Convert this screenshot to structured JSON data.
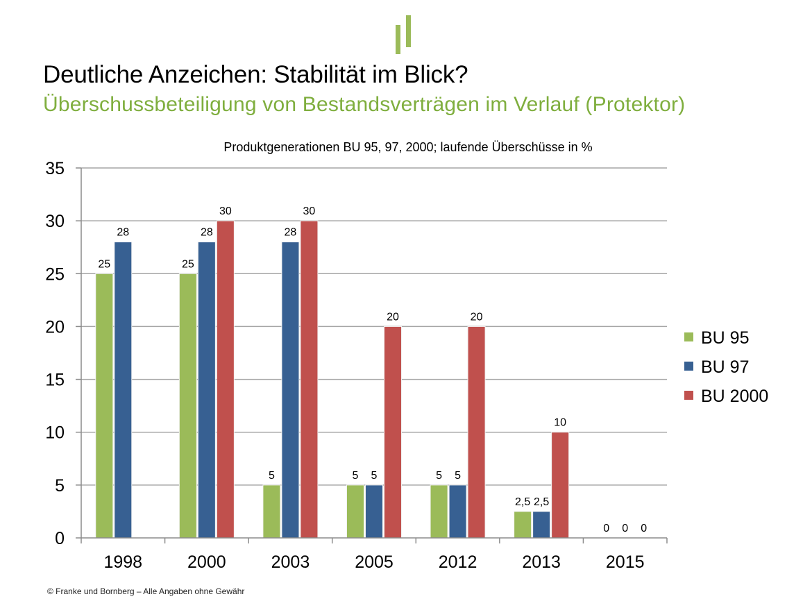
{
  "slide": {
    "title": "Deutliche Anzeichen: Stabilität im Blick?",
    "subtitle": "Überschussbeteiligung von Bestandsverträgen im Verlauf (Protektor)",
    "footer": "©  Franke und Bornberg – Alle Angaben ohne Gewähr",
    "accent_color": "#7fae3e"
  },
  "chart_data": {
    "type": "bar",
    "title": "Produktgenerationen BU 95, 97, 2000; laufende Überschüsse in %",
    "categories": [
      "1998",
      "2000",
      "2003",
      "2005",
      "2012",
      "2013",
      "2015"
    ],
    "series": [
      {
        "name": "BU 95",
        "color": "#9bbb59",
        "values": [
          25,
          25,
          5,
          5,
          5,
          2.5,
          0
        ],
        "labels": [
          "25",
          "25",
          "5",
          "5",
          "5",
          "2,5",
          "0"
        ]
      },
      {
        "name": "BU 97",
        "color": "#376092",
        "values": [
          28,
          28,
          28,
          5,
          5,
          2.5,
          0
        ],
        "labels": [
          "28",
          "28",
          "28",
          "5",
          "5",
          "2,5",
          "0"
        ]
      },
      {
        "name": "BU 2000",
        "color": "#c0504d",
        "values": [
          null,
          30,
          30,
          20,
          20,
          10,
          0
        ],
        "labels": [
          "",
          "30",
          "30",
          "20",
          "20",
          "10",
          "0"
        ]
      }
    ],
    "ylim": [
      0,
      35
    ],
    "yticks": [
      0,
      5,
      10,
      15,
      20,
      25,
      30,
      35
    ],
    "xlabel": "",
    "ylabel": "",
    "grid": true,
    "legend": "right"
  }
}
